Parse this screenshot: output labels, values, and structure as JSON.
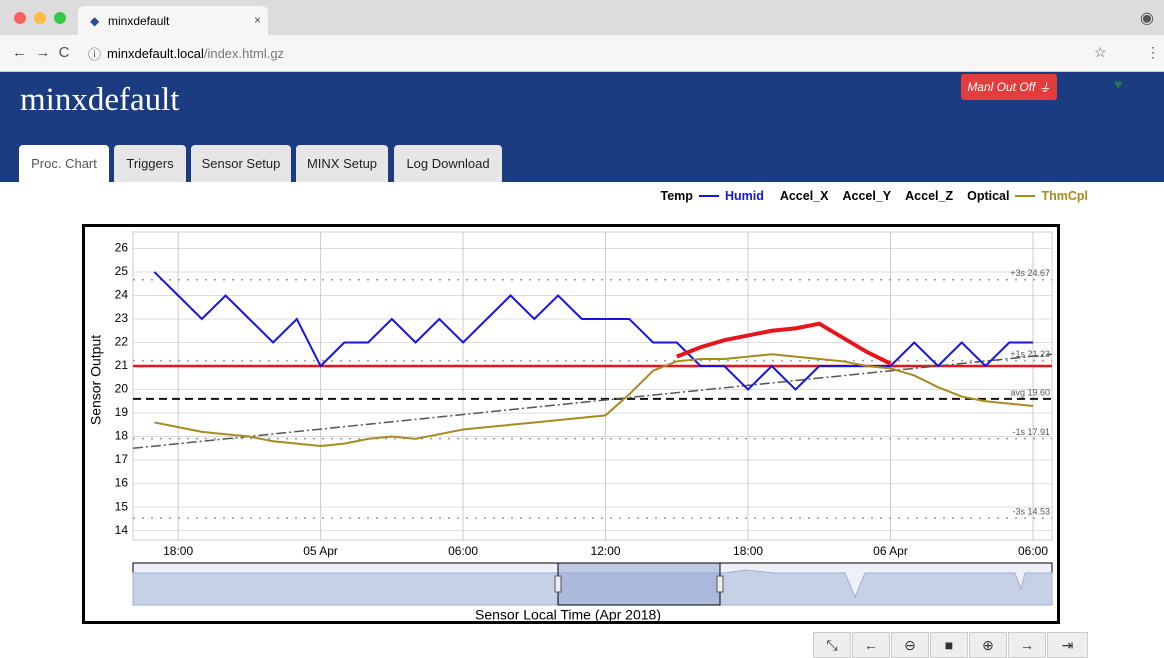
{
  "browser": {
    "tab_title": "minxdefault",
    "url_host": "minxdefault.local",
    "url_path": "/index.html.gz"
  },
  "header": {
    "title": "minxdefault",
    "button": "Manl Out Off"
  },
  "tabs": [
    "Proc. Chart",
    "Triggers",
    "Sensor Setup",
    "MINX Setup",
    "Log Download"
  ],
  "other_channels": [
    "Temp",
    "Accel_X",
    "Accel_Y",
    "Accel_Z",
    "Optical"
  ],
  "chart_data": {
    "type": "line",
    "y_label": "Sensor Output",
    "x_label": "Sensor Local Time (Apr 2018)",
    "xlim": [
      16.1,
      54.8
    ],
    "xticks": [
      {
        "value": 18,
        "label": "18:00"
      },
      {
        "value": 24,
        "label": "05 Apr"
      },
      {
        "value": 30,
        "label": "06:00"
      },
      {
        "value": 36,
        "label": "12:00"
      },
      {
        "value": 42,
        "label": "18:00"
      },
      {
        "value": 48,
        "label": "06 Apr"
      },
      {
        "value": 54,
        "label": "06:00"
      }
    ],
    "ylim": [
      13.6,
      26.7
    ],
    "yticks": [
      14,
      15,
      16,
      17,
      18,
      19,
      20,
      21,
      22,
      23,
      24,
      25,
      26
    ],
    "grid": true,
    "x": [
      17,
      18,
      19,
      20,
      21,
      22,
      23,
      24,
      25,
      26,
      27,
      28,
      29,
      30,
      31,
      32,
      33,
      34,
      35,
      36,
      37,
      38,
      39,
      40,
      41,
      42,
      43,
      44,
      45,
      46,
      47,
      48,
      49,
      50,
      51,
      52,
      53,
      54
    ],
    "series": [
      {
        "name": "Humid",
        "color": "#1515e0",
        "values": [
          25,
          24,
          23,
          24,
          23,
          22,
          23,
          21,
          22,
          22,
          23,
          22,
          23,
          22,
          23,
          24,
          23,
          24,
          23,
          23,
          23,
          22,
          22,
          21,
          21,
          20,
          21,
          20,
          21,
          21,
          21,
          21,
          22,
          21,
          22,
          21,
          22,
          22
        ]
      },
      {
        "name": "ThmCpl",
        "color": "#a88a1e",
        "values": [
          18.6,
          18.4,
          18.2,
          18.1,
          18.0,
          17.8,
          17.7,
          17.6,
          17.7,
          17.9,
          18.0,
          17.9,
          18.1,
          18.3,
          18.4,
          18.5,
          18.6,
          18.7,
          18.8,
          18.9,
          19.8,
          20.8,
          21.2,
          21.3,
          21.3,
          21.4,
          21.5,
          21.4,
          21.3,
          21.2,
          21.0,
          20.9,
          20.6,
          20.1,
          19.7,
          19.5,
          19.4,
          19.3
        ]
      },
      {
        "color": "#e8141c",
        "values": [
          null,
          null,
          null,
          null,
          null,
          null,
          null,
          null,
          null,
          null,
          null,
          null,
          null,
          null,
          null,
          null,
          null,
          null,
          null,
          null,
          null,
          null,
          21.4,
          21.8,
          22.1,
          22.3,
          22.5,
          22.6,
          22.8,
          22.2,
          21.6,
          21.1,
          null,
          null,
          null,
          null,
          null,
          null
        ]
      }
    ],
    "threshold": {
      "value": 21,
      "color": "#e8141c"
    },
    "trend": {
      "x": [
        16.1,
        54.8
      ],
      "values": [
        17.5,
        21.5
      ],
      "color": "#555555"
    },
    "reference_lines": [
      {
        "value": 24.67,
        "label": "+3s 24.67",
        "color": "#999999",
        "style": "dotted"
      },
      {
        "value": 21.23,
        "label": "+1s 21.23",
        "color": "#999999",
        "style": "dotted"
      },
      {
        "value": 19.6,
        "label": "avg 19.60",
        "color": "#111111",
        "style": "dashed"
      },
      {
        "value": 17.91,
        "label": "-1s 17.91",
        "color": "#999999",
        "style": "dotted"
      },
      {
        "value": 14.53,
        "label": "-3s 14.53",
        "color": "#999999",
        "style": "dotted"
      }
    ]
  }
}
